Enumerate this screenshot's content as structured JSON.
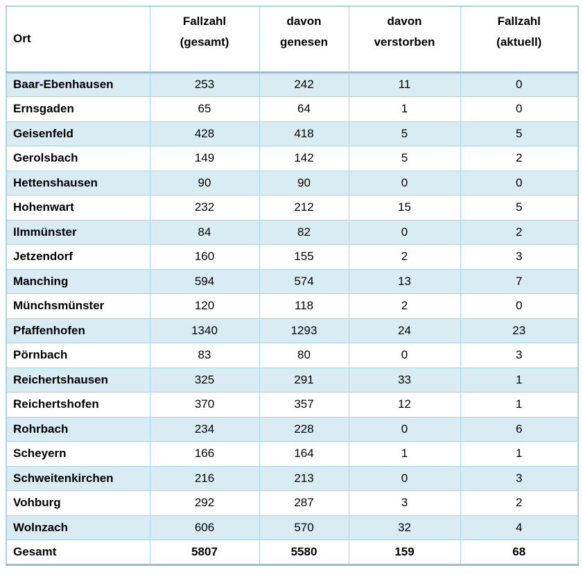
{
  "colors": {
    "stripe": "#d9ecf3",
    "border": "#a9d4e2",
    "border_strong": "#8cc4d6",
    "text": "#000000",
    "bg": "#ffffff"
  },
  "table": {
    "header": {
      "ort": "Ort",
      "fallzahl_gesamt": [
        "Fallzahl",
        "(gesamt)"
      ],
      "davon_genesen": [
        "davon",
        "genesen"
      ],
      "davon_verstorben": [
        "davon",
        "verstorben"
      ],
      "fallzahl_aktuell": [
        "Fallzahl",
        "(aktuell)"
      ]
    },
    "rows": [
      {
        "ort": "Baar-Ebenhausen",
        "gesamt": "253",
        "genesen": "242",
        "verstorben": "11",
        "aktuell": "0"
      },
      {
        "ort": "Ernsgaden",
        "gesamt": "65",
        "genesen": "64",
        "verstorben": "1",
        "aktuell": "0"
      },
      {
        "ort": "Geisenfeld",
        "gesamt": "428",
        "genesen": "418",
        "verstorben": "5",
        "aktuell": "5"
      },
      {
        "ort": "Gerolsbach",
        "gesamt": "149",
        "genesen": "142",
        "verstorben": "5",
        "aktuell": "2"
      },
      {
        "ort": "Hettenshausen",
        "gesamt": "90",
        "genesen": "90",
        "verstorben": "0",
        "aktuell": "0"
      },
      {
        "ort": "Hohenwart",
        "gesamt": "232",
        "genesen": "212",
        "verstorben": "15",
        "aktuell": "5"
      },
      {
        "ort": "Ilmmünster",
        "gesamt": "84",
        "genesen": "82",
        "verstorben": "0",
        "aktuell": "2"
      },
      {
        "ort": "Jetzendorf",
        "gesamt": "160",
        "genesen": "155",
        "verstorben": "2",
        "aktuell": "3"
      },
      {
        "ort": "Manching",
        "gesamt": "594",
        "genesen": "574",
        "verstorben": "13",
        "aktuell": "7"
      },
      {
        "ort": "Münchsmünster",
        "gesamt": "120",
        "genesen": "118",
        "verstorben": "2",
        "aktuell": "0"
      },
      {
        "ort": "Pfaffenhofen",
        "gesamt": "1340",
        "genesen": "1293",
        "verstorben": "24",
        "aktuell": "23"
      },
      {
        "ort": "Pörnbach",
        "gesamt": "83",
        "genesen": "80",
        "verstorben": "0",
        "aktuell": "3"
      },
      {
        "ort": "Reichertshausen",
        "gesamt": "325",
        "genesen": "291",
        "verstorben": "33",
        "aktuell": "1"
      },
      {
        "ort": "Reichertshofen",
        "gesamt": "370",
        "genesen": "357",
        "verstorben": "12",
        "aktuell": "1"
      },
      {
        "ort": "Rohrbach",
        "gesamt": "234",
        "genesen": "228",
        "verstorben": "0",
        "aktuell": "6"
      },
      {
        "ort": "Scheyern",
        "gesamt": "166",
        "genesen": "164",
        "verstorben": "1",
        "aktuell": "1"
      },
      {
        "ort": "Schweitenkirchen",
        "gesamt": "216",
        "genesen": "213",
        "verstorben": "0",
        "aktuell": "3"
      },
      {
        "ort": "Vohburg",
        "gesamt": "292",
        "genesen": "287",
        "verstorben": "3",
        "aktuell": "2"
      },
      {
        "ort": "Wolnzach",
        "gesamt": "606",
        "genesen": "570",
        "verstorben": "32",
        "aktuell": "4"
      }
    ],
    "total": {
      "ort": "Gesamt",
      "gesamt": "5807",
      "genesen": "5580",
      "verstorben": "159",
      "aktuell": "68"
    }
  }
}
